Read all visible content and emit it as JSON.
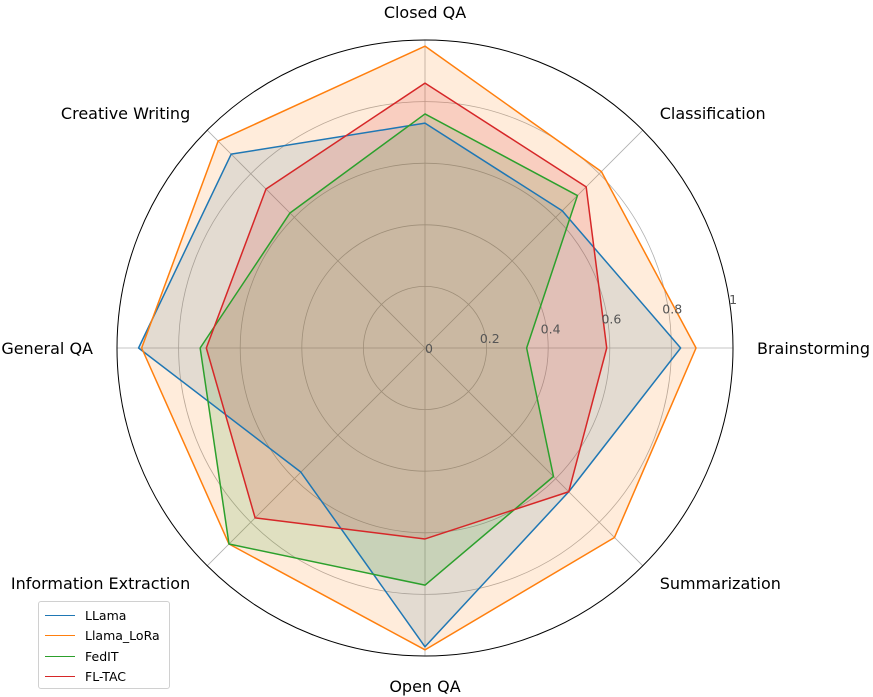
{
  "chart_data": {
    "type": "radar",
    "axes": [
      "Brainstorming",
      "Classification",
      "Closed QA",
      "Creative Writing",
      "General QA",
      "Information Extraction",
      "Open QA",
      "Summarization"
    ],
    "rlim": [
      0,
      1
    ],
    "rticks": [
      0,
      0.2,
      0.4,
      0.6,
      0.8,
      1
    ],
    "rtick_labels": [
      "0",
      "0.2",
      "0.4",
      "0.6",
      "0.8",
      "1"
    ],
    "grid": true,
    "legend_position": "bottom-left",
    "series": [
      {
        "name": "LLama",
        "color": "#1f77b4",
        "values": [
          0.83,
          0.63,
          0.73,
          0.89,
          0.93,
          0.57,
          0.97,
          0.66
        ]
      },
      {
        "name": "Llama_LoRa",
        "color": "#ff7f0e",
        "values": [
          0.88,
          0.81,
          0.98,
          0.95,
          0.92,
          0.9,
          0.98,
          0.87
        ]
      },
      {
        "name": "FedIT",
        "color": "#2ca02c",
        "values": [
          0.33,
          0.7,
          0.76,
          0.62,
          0.73,
          0.9,
          0.77,
          0.59
        ]
      },
      {
        "name": "FL-TAC",
        "color": "#d62728",
        "values": [
          0.59,
          0.74,
          0.86,
          0.73,
          0.71,
          0.78,
          0.62,
          0.66
        ]
      }
    ]
  }
}
